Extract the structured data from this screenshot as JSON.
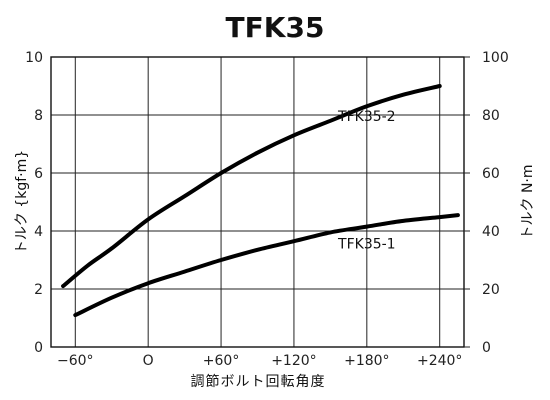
{
  "chart_data": {
    "type": "line",
    "title": "TFK35",
    "xlabel": "調節ボルト回転角度",
    "ylabel_left": "トルク {kgf·m}",
    "ylabel_right": "トルク N·m",
    "x_tick_values": [
      -60,
      0,
      60,
      120,
      180,
      240
    ],
    "x_tick_labels": [
      "−60°",
      "O",
      "+60°",
      "+120°",
      "+180°",
      "+240°"
    ],
    "xlim": [
      -80,
      260
    ],
    "ylim_left": [
      0,
      10
    ],
    "ylim_right": [
      0,
      100
    ],
    "y_left_ticks": [
      "0",
      "2",
      "4",
      "6",
      "8",
      "10"
    ],
    "y_right_ticks": [
      "0",
      "20",
      "40",
      "60",
      "80",
      "100"
    ],
    "grid": true,
    "series": [
      {
        "name": "TFK35-2",
        "x": [
          -70,
          -50,
          -30,
          0,
          30,
          60,
          90,
          120,
          150,
          180,
          210,
          240
        ],
        "y": [
          2.1,
          2.8,
          3.4,
          4.4,
          5.2,
          6.0,
          6.7,
          7.3,
          7.8,
          8.3,
          8.7,
          9.0
        ],
        "label_at": [
          180,
          7.8
        ]
      },
      {
        "name": "TFK35-1",
        "x": [
          -60,
          -30,
          0,
          30,
          60,
          90,
          120,
          150,
          180,
          210,
          240,
          255
        ],
        "y": [
          1.1,
          1.7,
          2.2,
          2.6,
          3.0,
          3.35,
          3.65,
          3.95,
          4.15,
          4.35,
          4.48,
          4.55
        ],
        "label_at": [
          180,
          3.4
        ]
      }
    ]
  }
}
